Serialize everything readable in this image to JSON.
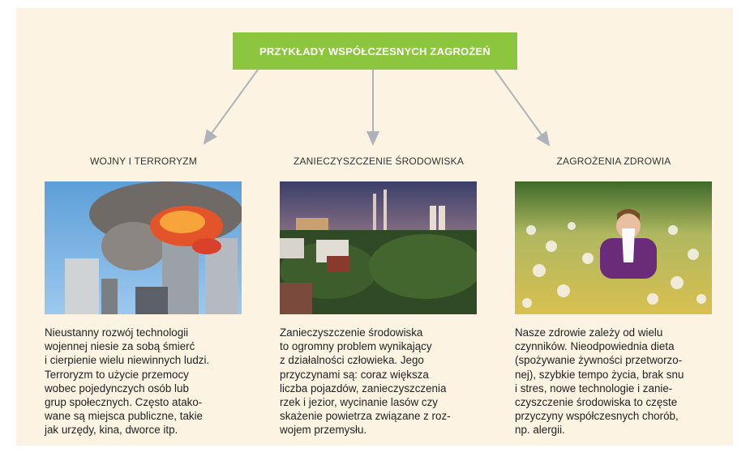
{
  "header": {
    "title": "PRZYKŁADY WSPÓŁCZESNYCH ZAGROŻEŃ"
  },
  "columns": [
    {
      "heading": "WOJNY I TERRORYZM",
      "text_lines": [
        "Nieustanny rozwój technologii",
        "wojennej niesie za sobą śmierć",
        "i cierpienie wielu niewinnych ludzi.",
        "Terroryzm to użycie przemocy",
        "wobec pojedynczych osób lub",
        "grup społecznych. Często atako-",
        "wane są miejsca publiczne, takie",
        "jak urzędy, kina, dworce itp."
      ]
    },
    {
      "heading": "ZANIECZYSZCZENIE ŚRODOWISKA",
      "text_lines": [
        "Zanieczyszczenie środowiska",
        "to ogromny problem wynikający",
        "z działalności człowieka. Jego",
        "przyczynami są: coraz większa",
        "liczba pojazdów, zanieczyszczenia",
        "rzek i jezior, wycinanie lasów czy",
        "skażenie powietrza związane z roz-",
        "wojem przemysłu."
      ]
    },
    {
      "heading": "ZAGROŻENIA ZDROWIA",
      "text_lines": [
        "Nasze zdrowie zależy od wielu",
        "czynników. Nieodpowiednia dieta",
        "(spożywanie żywności przetworzo-",
        "nej), szybkie tempo życia, brak snu",
        "i stres, nowe technologie i zanie-",
        "czyszczenie środowiska to częste",
        "przyczyny współczesnych chorób,",
        "np. alergii."
      ]
    }
  ]
}
